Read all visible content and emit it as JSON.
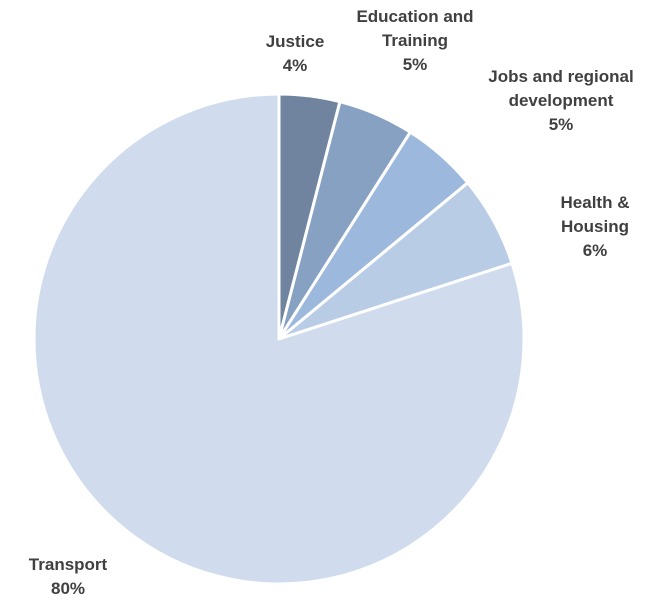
{
  "chart_data": {
    "type": "pie",
    "slices": [
      {
        "label_lines": [
          "Justice"
        ],
        "value": 4,
        "value_label": "4%",
        "color": "#70849f"
      },
      {
        "label_lines": [
          "Education and",
          "Training"
        ],
        "value": 5,
        "value_label": "5%",
        "color": "#86a1c2"
      },
      {
        "label_lines": [
          "Jobs and regional",
          "development"
        ],
        "value": 5,
        "value_label": "5%",
        "color": "#9cb8dd"
      },
      {
        "label_lines": [
          "Health &",
          "Housing"
        ],
        "value": 6,
        "value_label": "6%",
        "color": "#b9cce5"
      },
      {
        "label_lines": [
          "Transport"
        ],
        "value": 80,
        "value_label": "80%",
        "color": "#d0dcee"
      }
    ],
    "start_angle": "12 o'clock",
    "direction": "clockwise",
    "legend": "none",
    "title": ""
  }
}
